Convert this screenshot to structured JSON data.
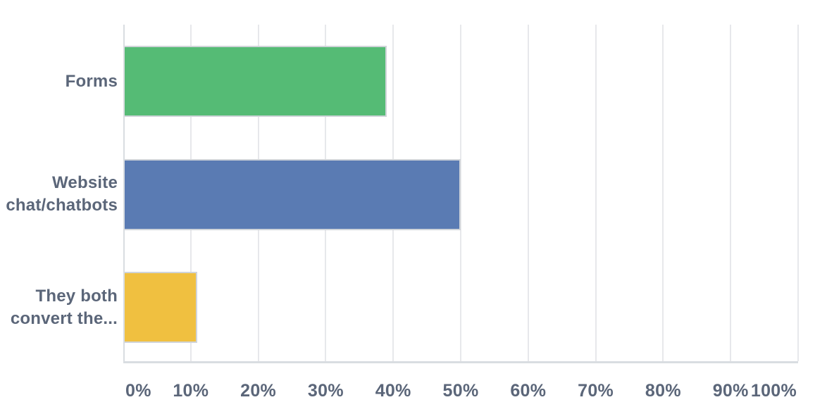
{
  "chart_data": {
    "type": "bar",
    "orientation": "horizontal",
    "title": "",
    "categories": [
      "Forms",
      "Website chat/chatbots",
      "They both convert the..."
    ],
    "values": [
      39,
      50,
      11
    ],
    "value_unit": "%",
    "xlabel": "",
    "ylabel": "",
    "xlim": [
      0,
      100
    ],
    "x_tick_labels": [
      "0%",
      "10%",
      "20%",
      "30%",
      "40%",
      "50%",
      "60%",
      "70%",
      "80%",
      "90%",
      "100%"
    ],
    "grid": true,
    "legend": false,
    "bar_colors": [
      "#55bb75",
      "#5a7bb3",
      "#f0c040"
    ]
  },
  "theme": {
    "background": "#ffffff",
    "grid_color": "#e7e8eb",
    "axis_color": "#d9dde1",
    "text_color": "#5b6679",
    "bar_border_color": "#d0d4d9"
  }
}
